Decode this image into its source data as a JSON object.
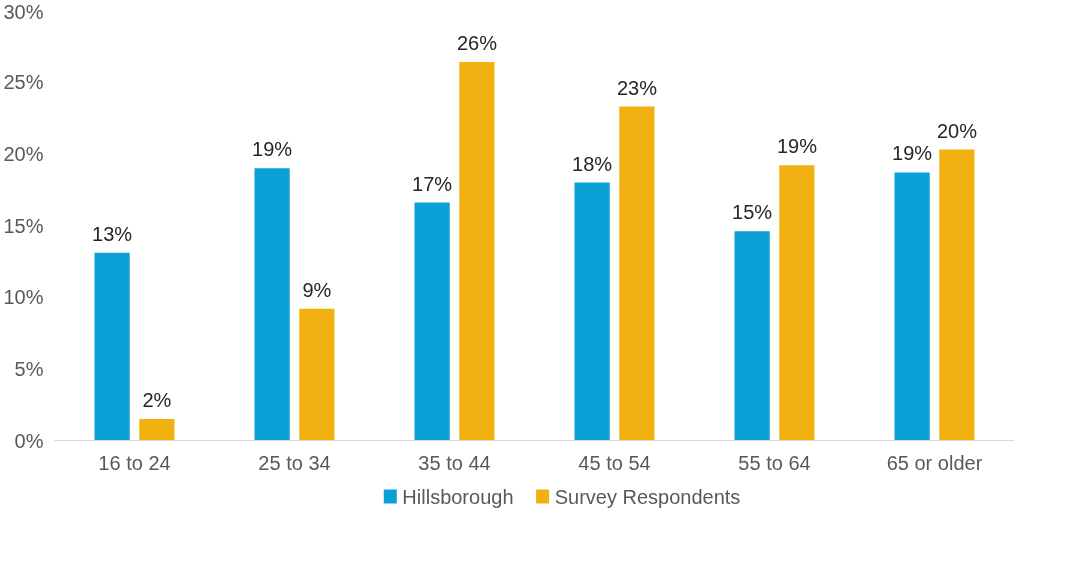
{
  "chart_data": {
    "type": "bar",
    "categories": [
      "16 to 24",
      "25 to 34",
      "35 to 44",
      "45 to 54",
      "55 to 64",
      "65 or older"
    ],
    "series": [
      {
        "name": "Hillsborough",
        "color": "#0aa0d6",
        "values": [
          13.1,
          19.0,
          16.6,
          18.0,
          14.6,
          18.7
        ],
        "value_labels": [
          "13%",
          "19%",
          "17%",
          "18%",
          "15%",
          "19%"
        ]
      },
      {
        "name": "Survey Respondents",
        "color": "#f0b111",
        "values": [
          1.5,
          9.2,
          26.4,
          23.3,
          19.2,
          20.3
        ],
        "value_labels": [
          "2%",
          "9%",
          "26%",
          "23%",
          "19%",
          "20%"
        ]
      }
    ],
    "ylim": [
      0,
      30
    ],
    "yticks": [
      {
        "value": 0,
        "label": "0%"
      },
      {
        "value": 5,
        "label": "5%"
      },
      {
        "value": 10,
        "label": "10%"
      },
      {
        "value": 15,
        "label": "15%"
      },
      {
        "value": 20,
        "label": "20%"
      },
      {
        "value": 25,
        "label": "25%"
      },
      {
        "value": 30,
        "label": "30%"
      }
    ],
    "grid": false,
    "legend": "bottom"
  }
}
